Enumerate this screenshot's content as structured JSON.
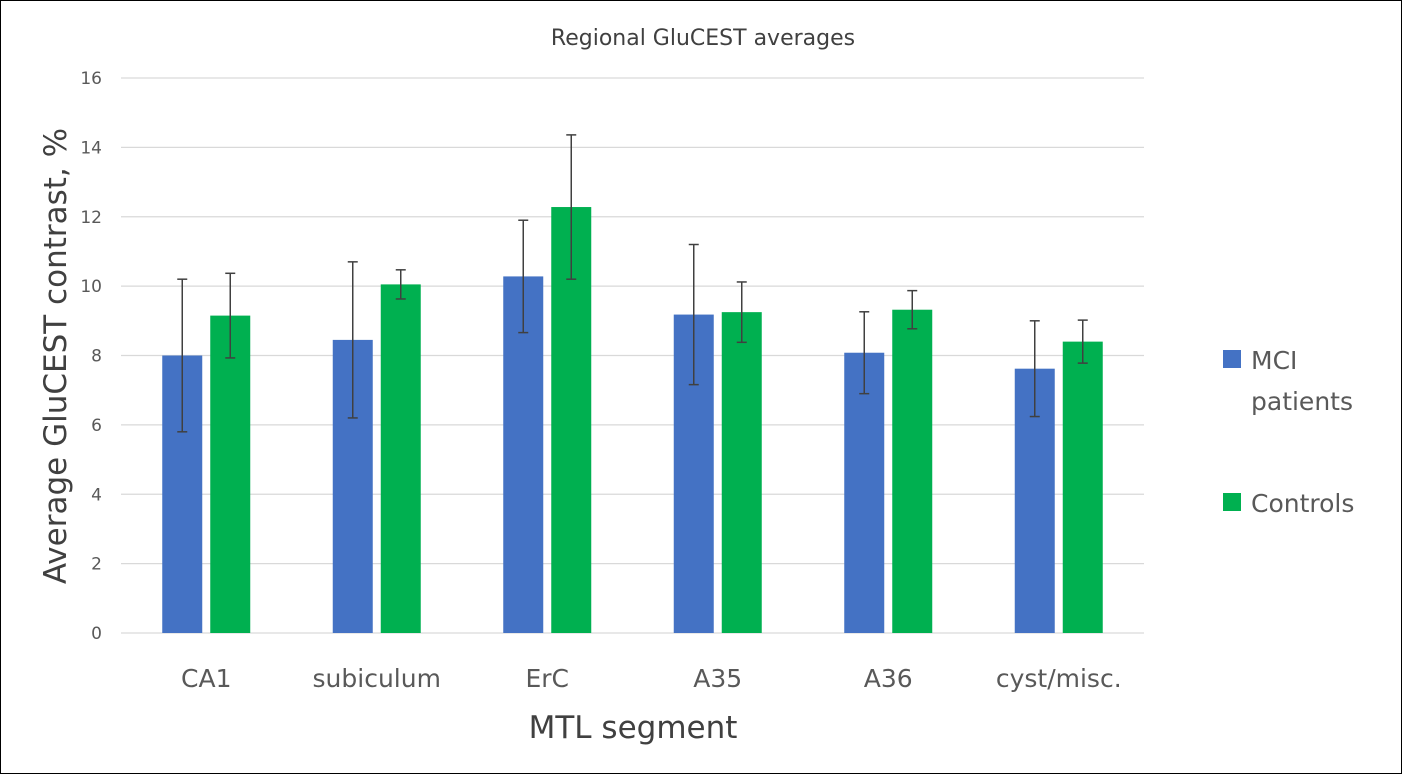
{
  "chart_data": {
    "type": "bar",
    "title": "Regional GluCEST averages",
    "xlabel": "MTL segment",
    "ylabel": "Average GluCEST contrast, %",
    "ylim": [
      0,
      16
    ],
    "yticks": [
      0,
      2,
      4,
      6,
      8,
      10,
      12,
      14,
      16
    ],
    "grid": true,
    "legend_position": "right",
    "categories": [
      "CA1",
      "subiculum",
      "ErC",
      "A35",
      "A36",
      "cyst/misc."
    ],
    "series": [
      {
        "name": "MCI patients",
        "color": "#4472C4",
        "values": [
          8.0,
          8.45,
          10.28,
          9.18,
          8.08,
          7.62
        ],
        "error": [
          2.2,
          2.25,
          1.62,
          2.02,
          1.18,
          1.38
        ]
      },
      {
        "name": "Controls",
        "color": "#00B050",
        "values": [
          9.15,
          10.05,
          12.28,
          9.25,
          9.32,
          8.4
        ],
        "error": [
          1.22,
          0.42,
          2.08,
          0.87,
          0.55,
          0.62
        ]
      }
    ],
    "legend_labels": [
      [
        "MCI",
        "patients"
      ],
      [
        "Controls"
      ]
    ]
  }
}
